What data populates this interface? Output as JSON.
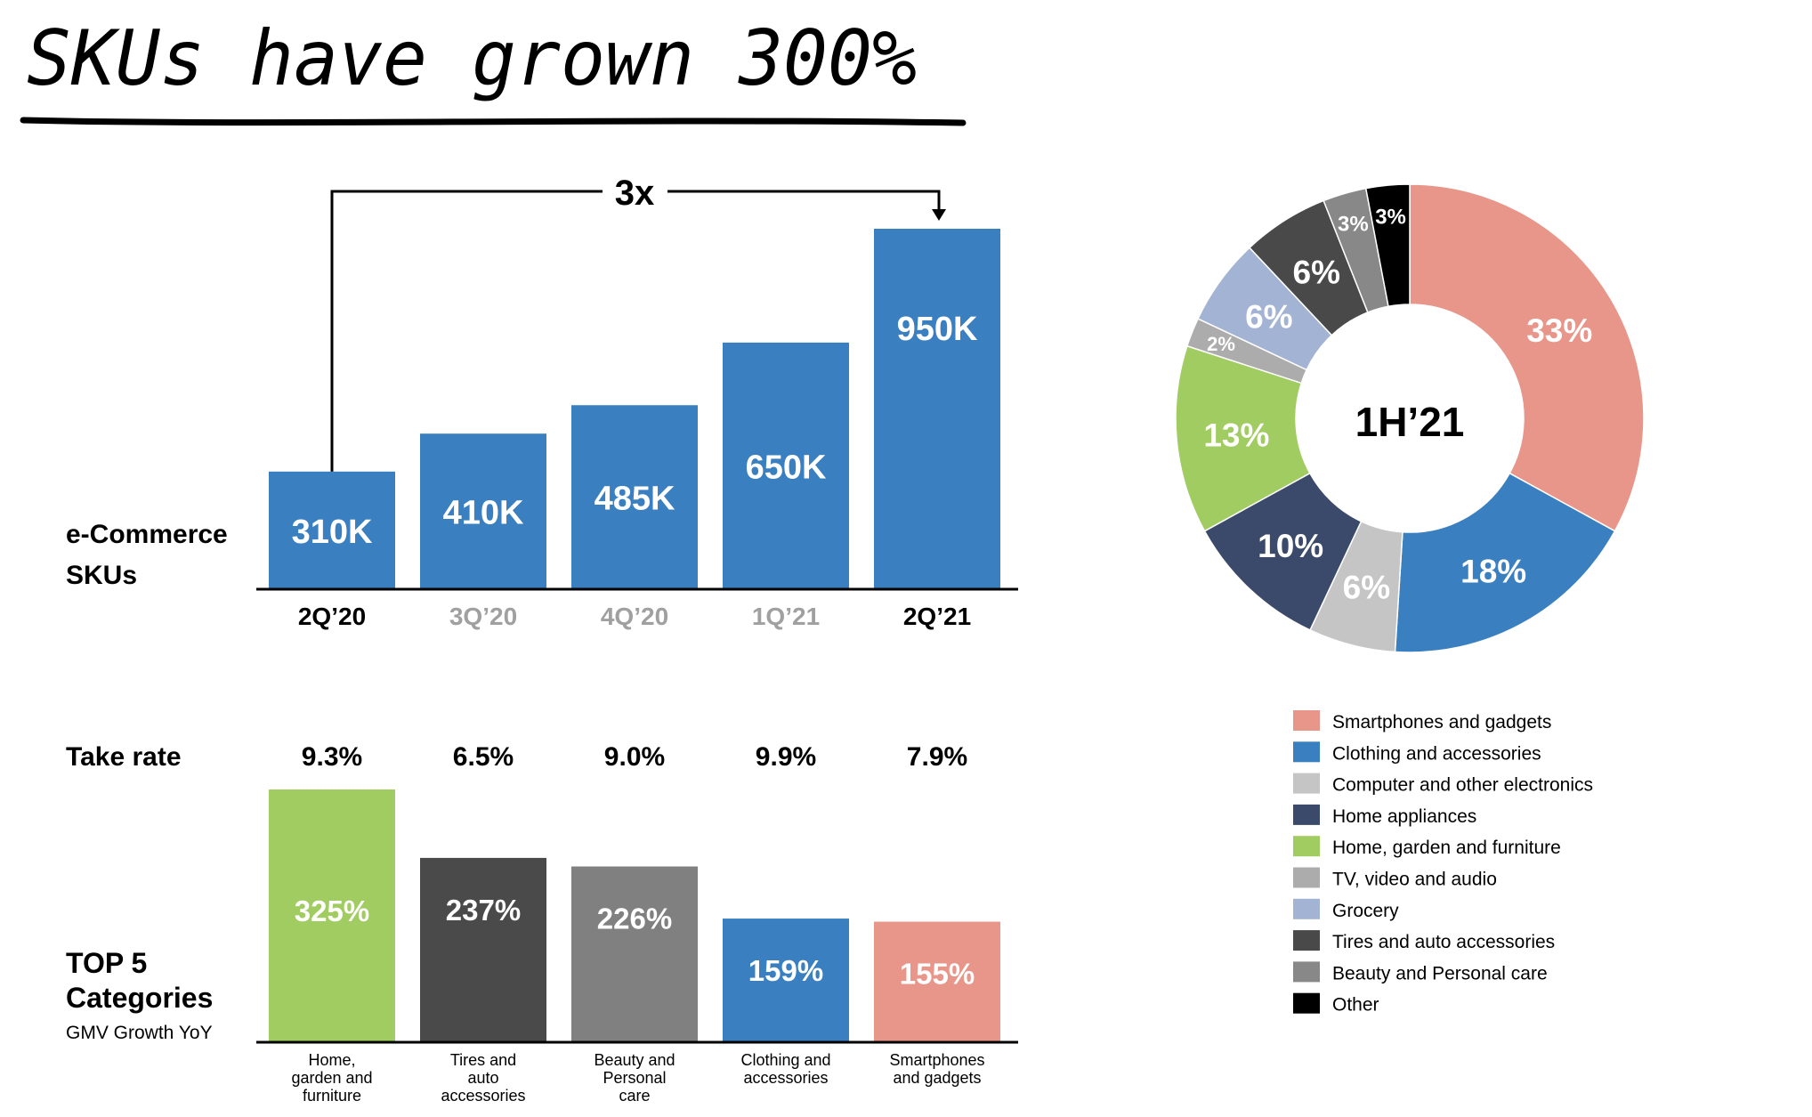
{
  "header": {
    "title": "SKUs have grown 300%"
  },
  "colors": {
    "blue": "#3a80c1",
    "green": "#a1cc62",
    "dark_gray": "#4a4a4a",
    "mid_gray": "#808080",
    "salmon": "#e8968a",
    "navy": "#3b4a6b",
    "light_gray": "#c5c5c5",
    "tv_gray": "#acacac",
    "grocery": "#a3b3d3",
    "tires": "#494949",
    "beauty": "#888888",
    "other": "#000000"
  },
  "chart_data": [
    {
      "type": "bar",
      "title": "",
      "row_label": "e-Commerce SKUs",
      "categories": [
        "2Q’20",
        "3Q’20",
        "4Q’20",
        "1Q’21",
        "2Q’21"
      ],
      "values": [
        310,
        410,
        485,
        650,
        950
      ],
      "data_labels": [
        "310K",
        "410K",
        "485K",
        "650K",
        "950K"
      ],
      "unit": "K",
      "ylim": [
        0,
        950
      ],
      "highlighted_categories": [
        "2Q’20",
        "2Q’21"
      ],
      "annotation": "3x",
      "grid": false
    },
    {
      "type": "table",
      "row_label": "Take rate",
      "values": [
        "9.3%",
        "6.5%",
        "9.0%",
        "9.9%",
        "7.9%"
      ]
    },
    {
      "type": "bar",
      "title": "",
      "row_label": "TOP 5 Categories",
      "row_sublabel": "GMV Growth YoY",
      "categories": [
        "Home, garden and furniture",
        "Tires and auto accessories",
        "Beauty and Personal care",
        "Clothing and accessories",
        "Smartphones and gadgets"
      ],
      "category_lines": [
        [
          "Home,",
          "garden and",
          "furniture"
        ],
        [
          "Tires and",
          "auto",
          "accessories"
        ],
        [
          "Beauty and",
          "Personal",
          "care"
        ],
        [
          "Clothing and",
          "accessories"
        ],
        [
          "Smartphones",
          "and gadgets"
        ]
      ],
      "values": [
        325,
        237,
        226,
        159,
        155
      ],
      "data_labels": [
        "325%",
        "237%",
        "226%",
        "159%",
        "155%"
      ],
      "unit": "%",
      "ylim": [
        0,
        325
      ],
      "grid": false
    },
    {
      "type": "pie",
      "donut": true,
      "center_label": "1H’21",
      "labels": [
        "Smartphones and gadgets",
        "Clothing and accessories",
        "Computer and other electronics",
        "Home appliances",
        "Home, garden and furniture",
        "TV, video and audio",
        "Grocery",
        "Tires and auto accessories",
        "Beauty and Personal care",
        "Other"
      ],
      "values": [
        33,
        18,
        6,
        10,
        13,
        2,
        6,
        6,
        3,
        3
      ],
      "data_labels": [
        "33%",
        "18%",
        "6%",
        "10%",
        "13%",
        "2%",
        "6%",
        "6%",
        "3%",
        "3%"
      ],
      "legend_position": "bottom"
    }
  ]
}
